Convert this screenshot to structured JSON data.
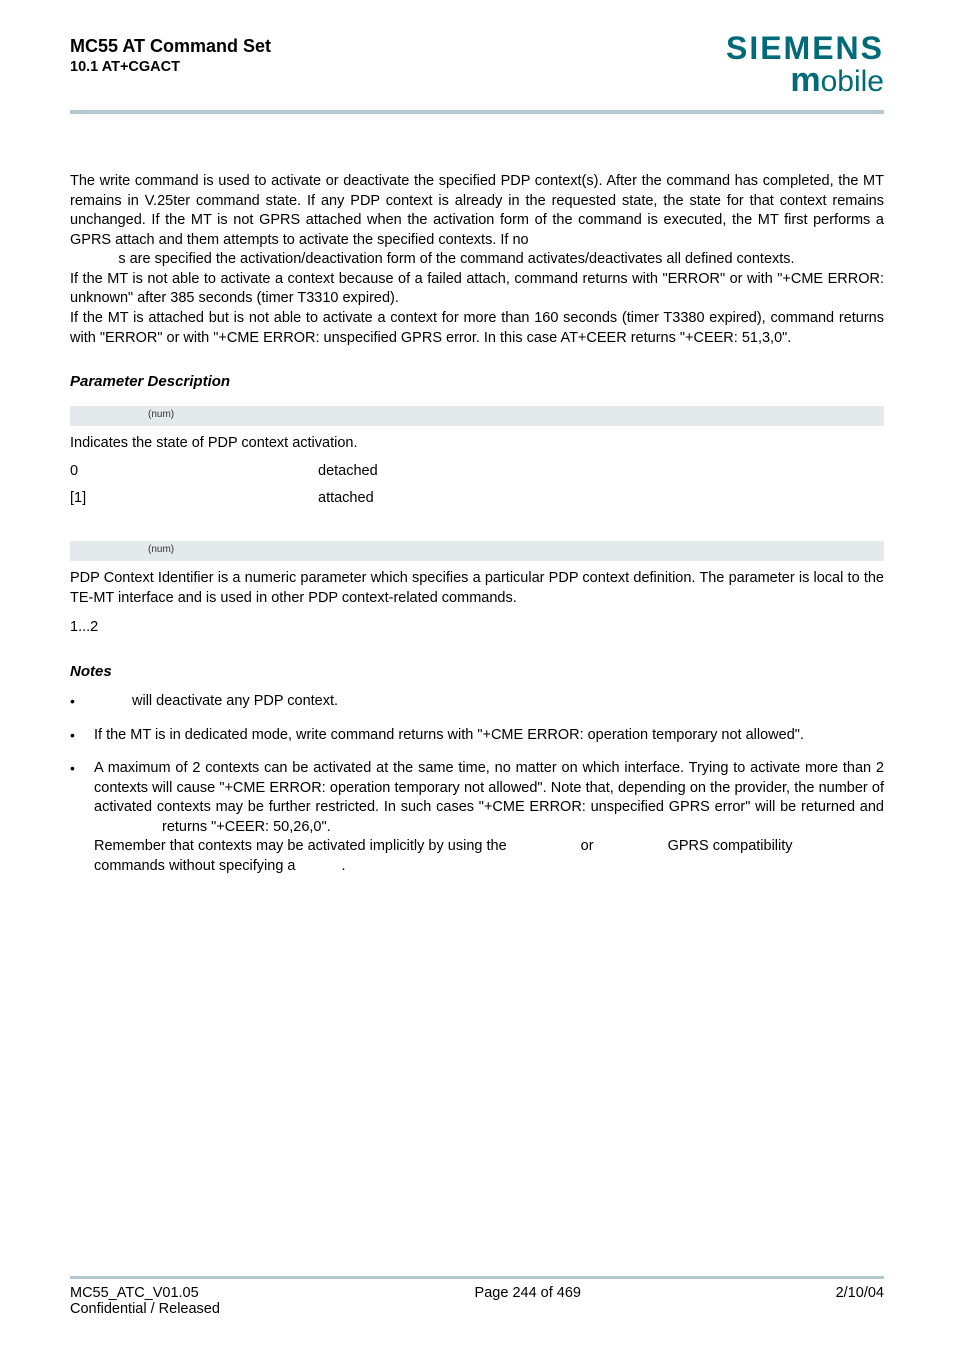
{
  "colors": {
    "brand": "#006a78",
    "rule": "#b6c8cf",
    "paramBar": "#e4e9ec",
    "text": "#000000",
    "bg": "#ffffff"
  },
  "typography": {
    "body_fontsize": 14.5,
    "title_fontsize": 18,
    "siemens_fontsize": 32,
    "mobile_fontsize": 30,
    "param_sup_fontsize": 10
  },
  "header": {
    "title": "MC55 AT Command Set",
    "subtitle": "10.1 AT+CGACT",
    "brand_main": "SIEMENS",
    "brand_sub_m": "m",
    "brand_sub_rest": "obile"
  },
  "intro": {
    "p1": "The write command is used to activate or deactivate the specified PDP context(s). After the command has completed, the MT remains in V.25ter command state. If any PDP context is already in the requested state, the state for that context remains unchanged. If the MT is not GPRS attached when the activation form of the command is executed, the MT first performs a GPRS attach and them attempts to activate the specified contexts. If no",
    "p1b_prefix_gap": "            ",
    "p1b": "s are specified the activation/deactivation form of the command activates/deactivates all defined contexts.",
    "p2": "If the MT is not able to activate a context because of a failed attach, command returns with \"ERROR\" or with \"+CME ERROR: unknown\" after 385 seconds (timer T3310 expired).",
    "p3": "If the MT is attached but is not able to activate a context for more than 160 seconds (timer T3380 expired), command returns with \"ERROR\" or with \"+CME ERROR: unspecified GPRS error. In this case AT+CEER returns \"+CEER: 51,3,0\"."
  },
  "paramSection": {
    "heading": "Parameter Description",
    "state": {
      "sup": "(num)",
      "desc": "Indicates the state of PDP context activation.",
      "rows": [
        {
          "key": "0",
          "val": "detached"
        },
        {
          "key": "[1]",
          "val": "attached"
        }
      ]
    },
    "cid": {
      "sup": "(num)",
      "desc": "PDP Context Identifier is a numeric parameter which specifies a particular PDP context definition. The parameter is local to the TE-MT interface and is used in other PDP context-related commands.",
      "range": "1...2"
    }
  },
  "notes": {
    "heading": "Notes",
    "items": [
      {
        "pre": "",
        "gap1": 38,
        "mid": "will deactivate any PDP context.",
        "gap2": 0,
        "post": ""
      },
      {
        "pre": "If the MT is in dedicated mode, write command returns with \"+CME ERROR: operation temporary not allowed\".",
        "gap1": 0,
        "mid": "",
        "gap2": 0,
        "post": ""
      },
      {
        "pre": "A maximum of 2 contexts can be activated at the same time, no matter on which interface. Trying to activate more than 2 contexts will cause \"+CME ERROR: operation temporary not allowed\". Note that, depending on the provider, the number of activated contexts may be further restricted. In such cases \"+CME ERROR: unspecified GPRS error\" will be returned and",
        "gap1": 68,
        "mid": "returns \"+CEER: 50,26,0\".",
        "gap2": 0,
        "post": "",
        "line2_a": "Remember that contexts may be activated implicitly by using the",
        "line2_gap1": 70,
        "line2_b": "or",
        "line2_gap2": 70,
        "line2_c": "GPRS compatibility",
        "line3_a": "commands without specifying a",
        "line3_gap": 42,
        "line3_b": "."
      }
    ]
  },
  "footer": {
    "left1": "MC55_ATC_V01.05",
    "left2": "Confidential / Released",
    "center": "Page 244 of 469",
    "right": "2/10/04"
  }
}
